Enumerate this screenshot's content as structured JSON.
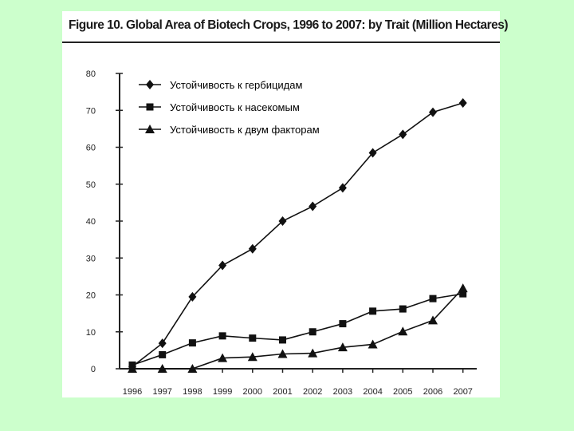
{
  "chart_data": {
    "type": "line",
    "title": "Figure 10. Global Area of Biotech Crops, 1996 to 2007: by Trait (Million Hectares)",
    "xlabel": "",
    "ylabel": "",
    "categories": [
      "1996",
      "1997",
      "1998",
      "1999",
      "2000",
      "2001",
      "2002",
      "2003",
      "2004",
      "2005",
      "2006",
      "2007"
    ],
    "ylim": [
      0,
      80
    ],
    "yticks": [
      0,
      10,
      20,
      30,
      40,
      50,
      60,
      70,
      80
    ],
    "legend_position": "top-left",
    "series": [
      {
        "name": "Устойчивость к гербицидам",
        "marker": "diamond",
        "values": [
          0.6,
          6.9,
          19.5,
          28.0,
          32.5,
          40.0,
          44.0,
          49.0,
          58.5,
          63.5,
          69.5,
          72.0
        ]
      },
      {
        "name": "Устойчивость к насекомым",
        "marker": "square",
        "values": [
          1.0,
          3.8,
          7.0,
          8.9,
          8.3,
          7.8,
          10.0,
          12.2,
          15.6,
          16.2,
          19.0,
          20.3
        ]
      },
      {
        "name": "Устойчивость к двум факторам",
        "marker": "triangle",
        "values": [
          0.0,
          0.0,
          0.0,
          2.9,
          3.2,
          4.0,
          4.2,
          5.8,
          6.6,
          10.1,
          13.1,
          21.8
        ]
      }
    ]
  }
}
